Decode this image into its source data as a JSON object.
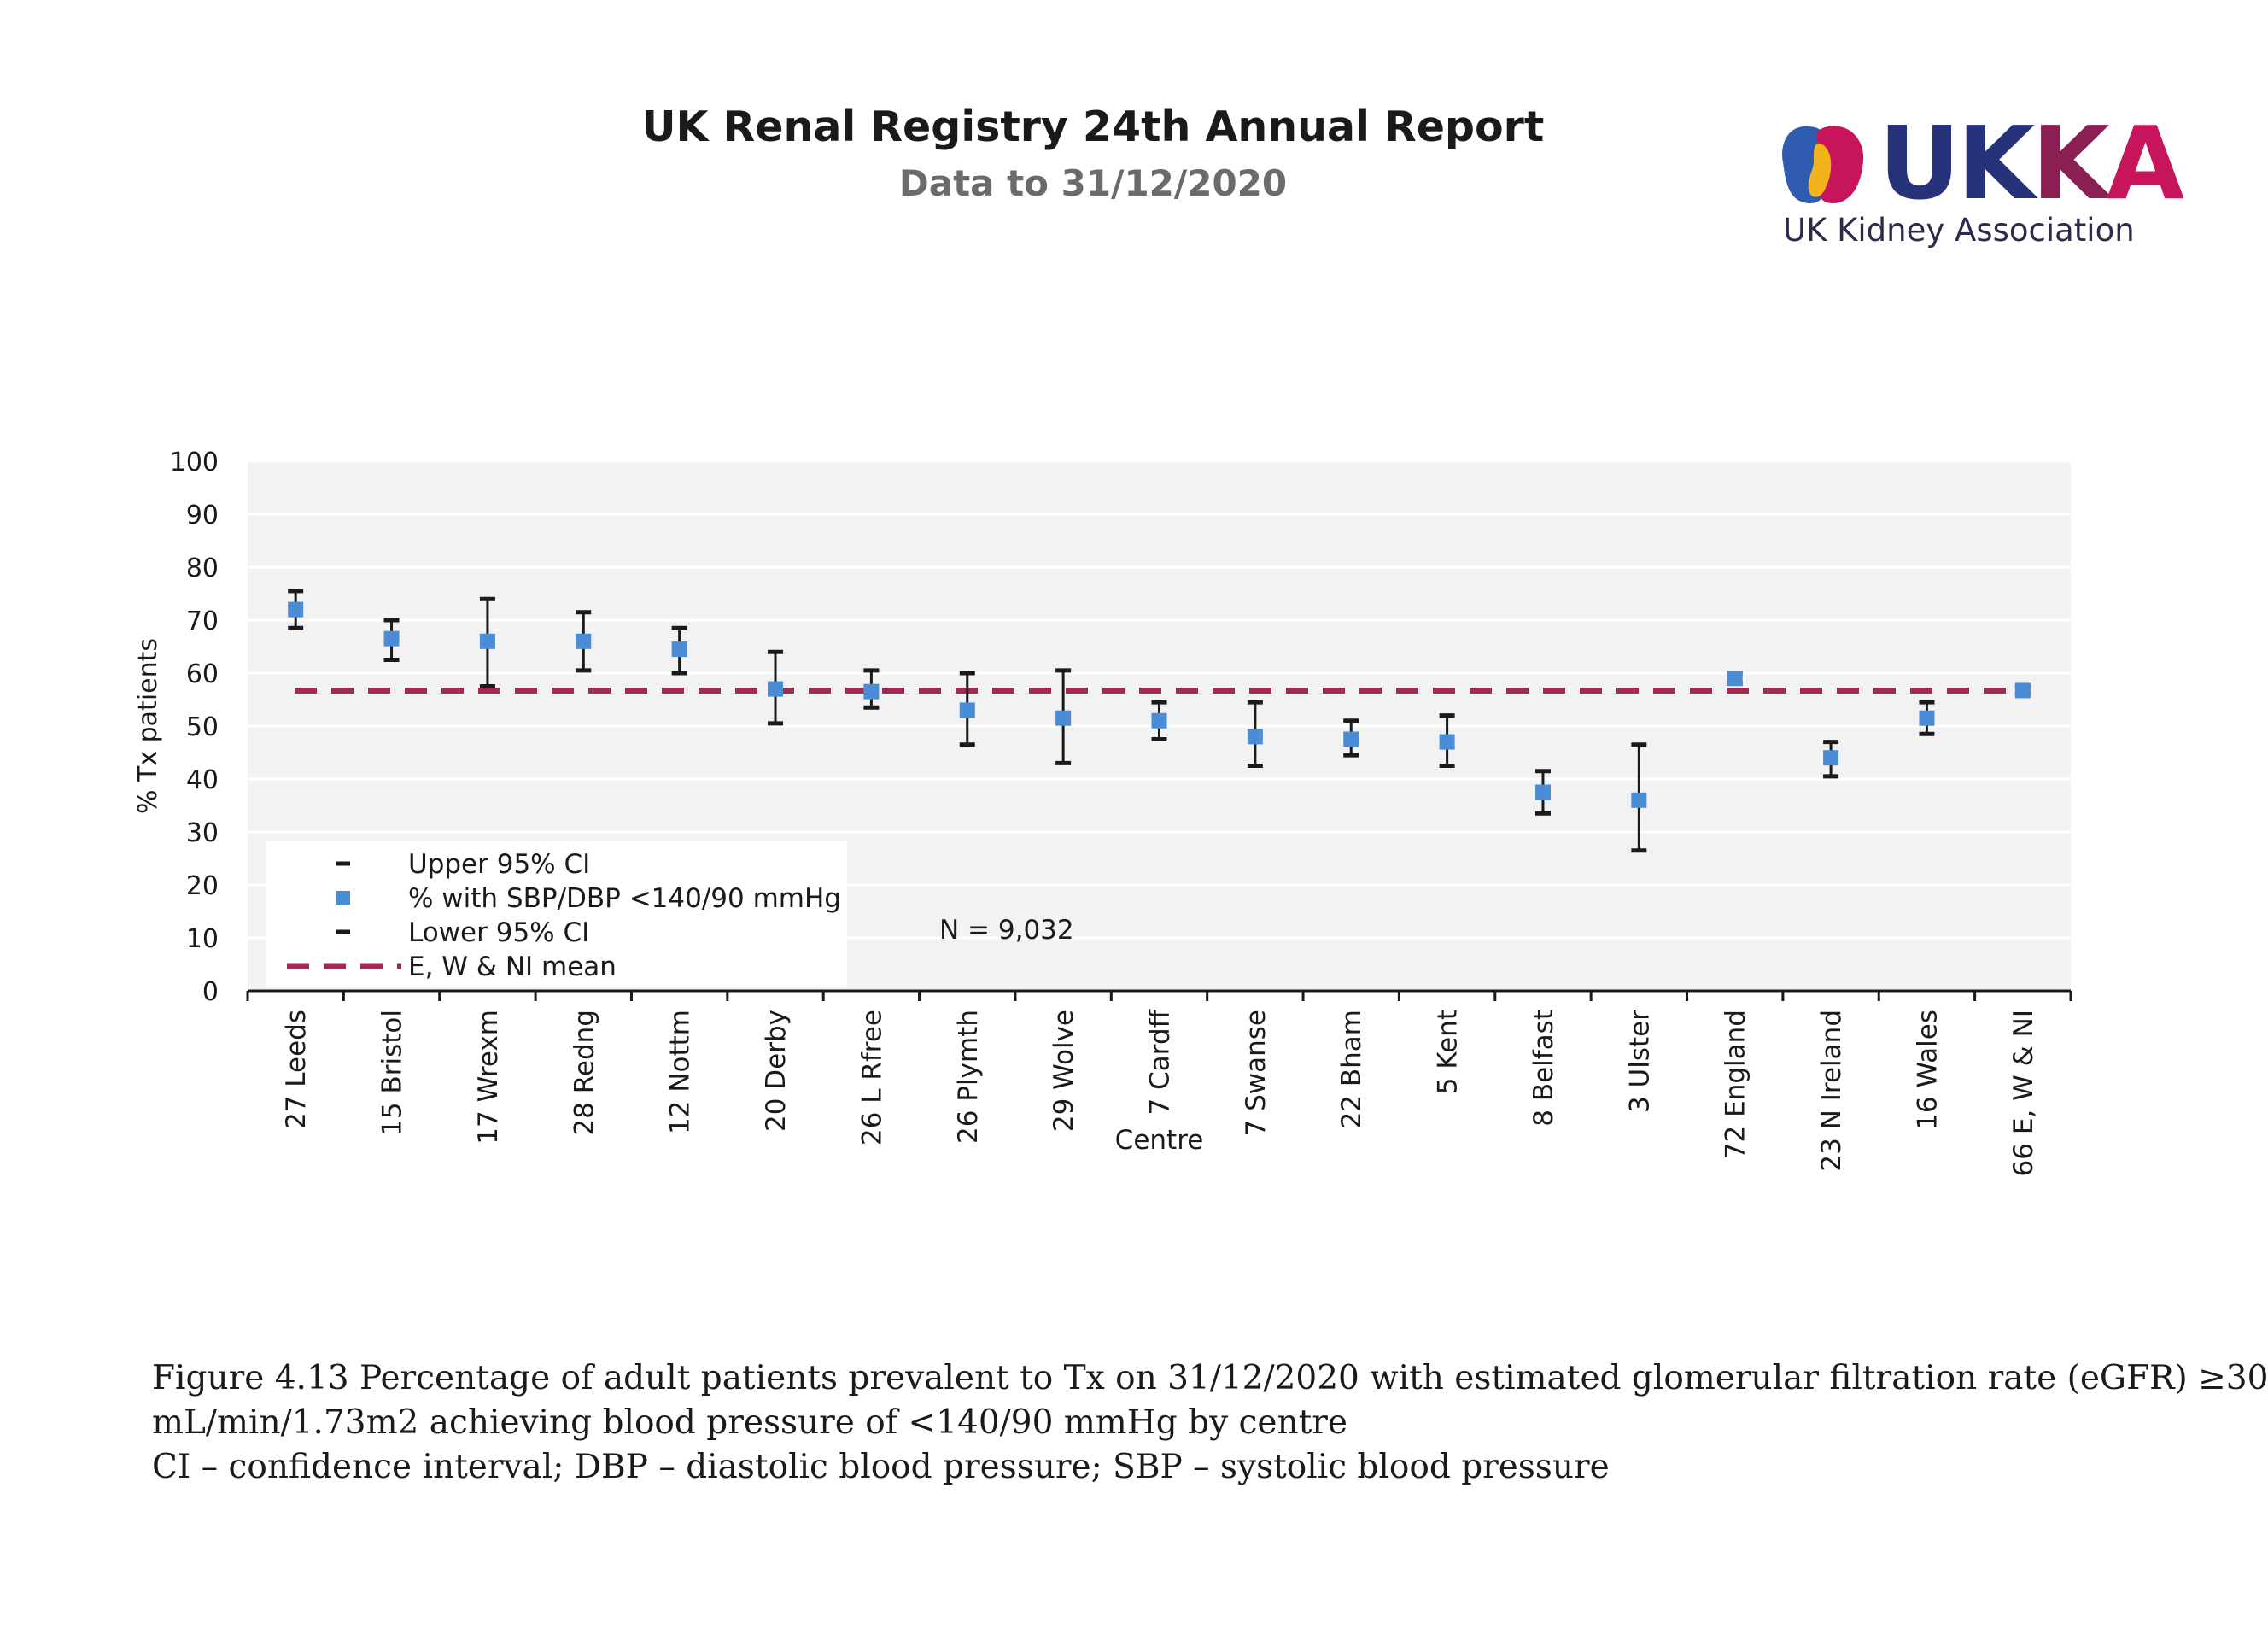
{
  "header": {
    "title": "UK Renal Registry 24th Annual Report",
    "subtitle": "Data to 31/12/2020"
  },
  "logo": {
    "word": "UKKA",
    "tagline": "UK Kidney Association"
  },
  "colors": {
    "plot_bg": "#f2f2f2",
    "gridline": "#ffffff",
    "point": "#4a8cd6",
    "ci": "#1a1a1a",
    "mean_line": "#a3294f"
  },
  "chart_data": {
    "type": "scatter",
    "ylabel": "% Tx patients",
    "xlabel": "Centre",
    "ylim": [
      0,
      100
    ],
    "yticks": [
      0,
      10,
      20,
      30,
      40,
      50,
      60,
      70,
      80,
      90,
      100
    ],
    "grid": true,
    "annotation": "N = 9,032",
    "mean": 56.7,
    "categories": [
      "27 Leeds",
      "15 Bristol",
      "17 Wrexm",
      "28 Redng",
      "12 Nottm",
      "20 Derby",
      "26 L Rfree",
      "26 Plymth",
      "29 Wolve",
      "7 Cardff",
      "7 Swanse",
      "22 Bham",
      "5 Kent",
      "8 Belfast",
      "3 Ulster",
      "72 England",
      "23 N Ireland",
      "16 Wales",
      "66 E, W & NI"
    ],
    "series": [
      {
        "name": "Upper 95% CI",
        "values": [
          75.5,
          70,
          74,
          71.5,
          68.5,
          64,
          60.5,
          60,
          60.5,
          54.5,
          54.5,
          51,
          52,
          41.5,
          46.5,
          60,
          47,
          54.5,
          57.5
        ]
      },
      {
        "name": "% with SBP/DBP <140/90 mmHg",
        "values": [
          72,
          66.5,
          66,
          66,
          64.5,
          57,
          56.5,
          53,
          51.5,
          51,
          48,
          47.5,
          47,
          37.5,
          36,
          59,
          44,
          51.5,
          56.7
        ]
      },
      {
        "name": "Lower 95% CI",
        "values": [
          68.5,
          62.5,
          57.5,
          60.5,
          60,
          50.5,
          53.5,
          46.5,
          43,
          47.5,
          42.5,
          44.5,
          42.5,
          33.5,
          26.5,
          58,
          40.5,
          48.5,
          56
        ]
      },
      {
        "name": "E, W & NI mean",
        "values": [
          56.7,
          56.7,
          56.7,
          56.7,
          56.7,
          56.7,
          56.7,
          56.7,
          56.7,
          56.7,
          56.7,
          56.7,
          56.7,
          56.7,
          56.7,
          56.7,
          56.7,
          56.7,
          56.7
        ]
      }
    ],
    "legend": {
      "placement": "bottom-left",
      "entries": [
        "Upper 95% CI",
        "% with SBP/DBP <140/90 mmHg",
        "Lower 95% CI",
        "E, W & NI mean"
      ]
    }
  },
  "caption": {
    "line1": "Figure 4.13 Percentage of adult patients prevalent to Tx on 31/12/2020 with estimated glomerular filtration rate (eGFR) ≥30",
    "line2": "mL/min/1.73m2 achieving blood pressure of <140/90 mmHg by centre",
    "line3": "CI – confidence interval; DBP – diastolic blood pressure; SBP – systolic blood pressure"
  }
}
